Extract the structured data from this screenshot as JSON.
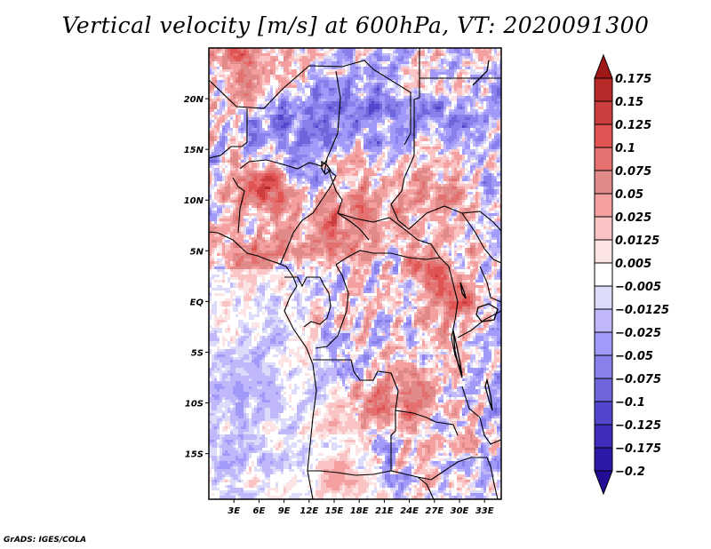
{
  "title": "Vertical velocity [m/s] at 600hPa, VT: 2020091300",
  "footer": "GrADS: IGES/COLA",
  "chart_data": {
    "type": "heatmap",
    "title": "Vertical velocity [m/s] at 600hPa, VT: 2020091300",
    "variable": "Vertical velocity",
    "units": "m/s",
    "level": "600hPa",
    "valid_time": "2020091300",
    "xlabel": "",
    "ylabel": "",
    "xlim": [
      0,
      35
    ],
    "ylim": [
      -19.5,
      25
    ],
    "x_ticks": [
      {
        "value": 3,
        "label": "3E"
      },
      {
        "value": 6,
        "label": "6E"
      },
      {
        "value": 9,
        "label": "9E"
      },
      {
        "value": 12,
        "label": "12E"
      },
      {
        "value": 15,
        "label": "15E"
      },
      {
        "value": 18,
        "label": "18E"
      },
      {
        "value": 21,
        "label": "21E"
      },
      {
        "value": 24,
        "label": "24E"
      },
      {
        "value": 27,
        "label": "27E"
      },
      {
        "value": 30,
        "label": "30E"
      },
      {
        "value": 33,
        "label": "33E"
      }
    ],
    "y_ticks": [
      {
        "value": 20,
        "label": "20N"
      },
      {
        "value": 15,
        "label": "15N"
      },
      {
        "value": 10,
        "label": "10N"
      },
      {
        "value": 5,
        "label": "5N"
      },
      {
        "value": 0,
        "label": "EQ"
      },
      {
        "value": -5,
        "label": "5S"
      },
      {
        "value": -10,
        "label": "10S"
      },
      {
        "value": -15,
        "label": "15S"
      }
    ],
    "colorbar": {
      "orientation": "vertical",
      "placement": "right",
      "extend": "both",
      "levels": [
        {
          "label": "0.175",
          "value": 0.175
        },
        {
          "label": "0.15",
          "value": 0.15
        },
        {
          "label": "0.125",
          "value": 0.125
        },
        {
          "label": "0.1",
          "value": 0.1
        },
        {
          "label": "0.075",
          "value": 0.075
        },
        {
          "label": "0.05",
          "value": 0.05
        },
        {
          "label": "0.025",
          "value": 0.025
        },
        {
          "label": "0.0125",
          "value": 0.0125
        },
        {
          "label": "0.005",
          "value": 0.005
        },
        {
          "label": "−0.005",
          "value": -0.005
        },
        {
          "label": "−0.0125",
          "value": -0.0125
        },
        {
          "label": "−0.025",
          "value": -0.025
        },
        {
          "label": "−0.05",
          "value": -0.05
        },
        {
          "label": "−0.075",
          "value": -0.075
        },
        {
          "label": "−0.1",
          "value": -0.1
        },
        {
          "label": "−0.125",
          "value": -0.125
        },
        {
          "label": "−0.175",
          "value": -0.175
        },
        {
          "label": "−0.2",
          "value": -0.2
        }
      ],
      "colors": [
        "#a01818",
        "#b82a2a",
        "#cc3e3e",
        "#e05454",
        "#e47070",
        "#e08a8a",
        "#f4a0a0",
        "#fac4c4",
        "#fde4e4",
        "#ffffff",
        "#dcdcfa",
        "#c0b8fa",
        "#a29af8",
        "#8a80ec",
        "#7066dc",
        "#5446cc",
        "#3e2cbc",
        "#2c1aa6",
        "#220c96"
      ]
    },
    "regions_note": "Positive (upward, red) maxima over Sahel/Nigeria-Cameroon highlands, Central African Republic, South Sudan, East African Rift; negative (blue) areas over Sahara and South Atlantic"
  }
}
